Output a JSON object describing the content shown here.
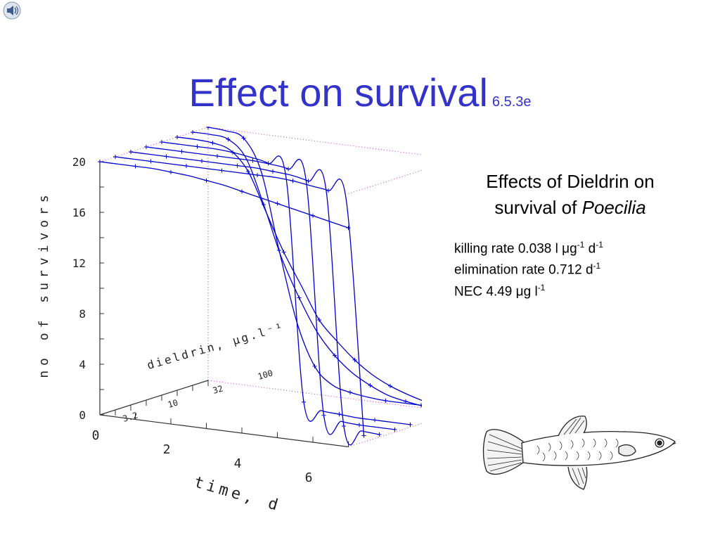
{
  "slide": {
    "title": "Effect on survival",
    "title_number": "6.5.3e",
    "title_color": "#3333cc"
  },
  "icons": {
    "sound": "speaker-icon",
    "fish": "poecilia-fish-illustration"
  },
  "caption": {
    "line1": "Effects of Dieldrin on",
    "line2_prefix": "survival of",
    "line2_species": "Poecilia",
    "stats": {
      "killing_rate_text": "killing rate 0.038 l ",
      "killing_rate_unit": "g",
      "killing_rate_exp1": "-1",
      "killing_rate_d": " d",
      "killing_rate_exp2": "-1",
      "elimination_text": "elimination rate 0.712 d",
      "elimination_exp": "-1",
      "nec_text": "NEC 4.49 ",
      "nec_unit": "g l",
      "nec_exp": "-1"
    }
  },
  "chart_data": {
    "type": "line",
    "projection": "3d-surface",
    "ylabel": "no of survivors",
    "xlabel": "time, d",
    "zlabel": "dieldrin, μg.l⁻¹",
    "ylim": [
      0,
      20
    ],
    "y_ticks": [
      "0",
      "4",
      "8",
      "12",
      "16",
      "20"
    ],
    "x_ticks": [
      "0",
      "2",
      "4",
      "6"
    ],
    "z_ticks": [
      "3.2",
      "10",
      "32",
      "100"
    ],
    "xlim": [
      0,
      7
    ],
    "line_color": "#0000cc",
    "grid_color": "#cc33cc",
    "concentrations": [
      "0",
      "3.2",
      "5.6",
      "10",
      "18",
      "32",
      "56",
      "100"
    ],
    "x": [
      0,
      0.5,
      1,
      1.5,
      2,
      2.5,
      3,
      3.5,
      4,
      4.5,
      5,
      5.5,
      6,
      6.5,
      7
    ],
    "series": [
      {
        "values": [
          20,
          20,
          20,
          20,
          19.9,
          19.8,
          19.6,
          19.4,
          19.1,
          18.8,
          18.5,
          18.2,
          17.9,
          17.6,
          17.3
        ]
      },
      {
        "values": [
          20,
          20,
          20,
          20,
          20,
          20,
          20,
          20,
          20,
          20,
          19.9,
          19.7,
          19.5,
          19,
          0.5
        ]
      },
      {
        "values": [
          20,
          20,
          20,
          20,
          20,
          20,
          20,
          20,
          19.9,
          19.8,
          19.5,
          19,
          0.5,
          0.3,
          0.2
        ]
      },
      {
        "values": [
          20,
          20,
          20,
          20,
          20,
          20,
          20,
          19.9,
          19.7,
          19,
          0.6,
          0.3,
          0.2,
          0.2,
          0.2
        ]
      },
      {
        "values": [
          20,
          20,
          20,
          20,
          19.9,
          19.7,
          19.4,
          18.5,
          0.9,
          0.4,
          0.3,
          0.2,
          0.2,
          0.2,
          0.2
        ]
      },
      {
        "values": [
          20,
          20,
          19.9,
          19.5,
          18,
          15,
          12,
          9.5,
          7,
          5.5,
          4.2,
          3.2,
          2.5,
          2,
          1.6
        ]
      },
      {
        "values": [
          20,
          20,
          19.8,
          18.5,
          15,
          11,
          8,
          5.5,
          3.8,
          2.6,
          1.8,
          1.2,
          0.9,
          0.7,
          0.6
        ]
      },
      {
        "values": [
          20,
          19.9,
          19.5,
          17,
          11,
          5.5,
          2.2,
          0.9,
          0.5,
          0.3,
          0.2,
          0.2,
          0.2,
          0.2,
          0.2
        ]
      }
    ]
  }
}
